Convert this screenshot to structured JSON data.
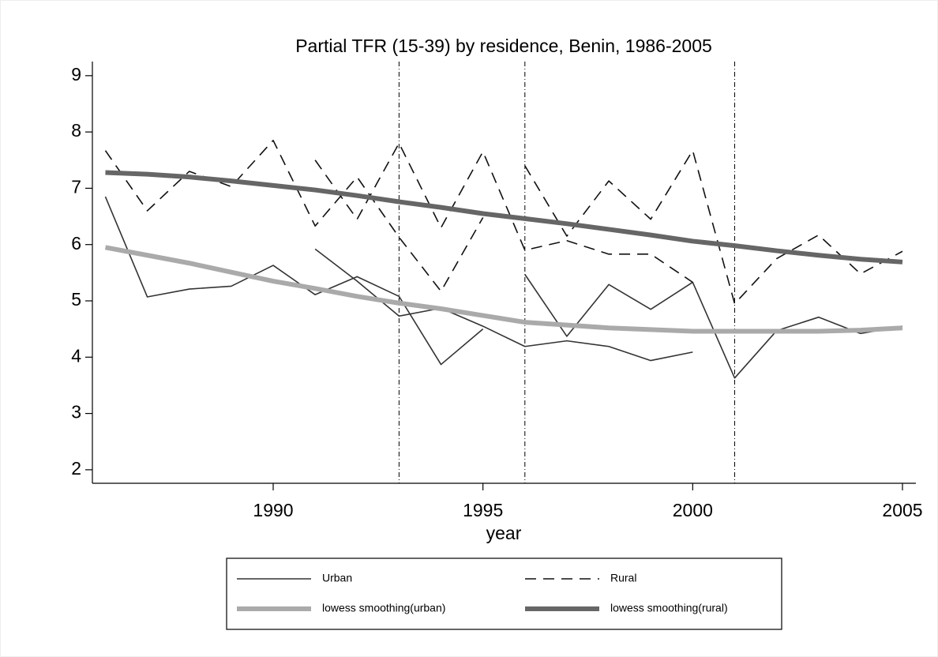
{
  "chart_data": {
    "type": "line",
    "title": "Partial TFR (15-39) by residence, Benin, 1986-2005",
    "x_label": "year",
    "x": [
      1986,
      1987,
      1988,
      1989,
      1990,
      1991,
      1992,
      1993,
      1994,
      1995,
      1996,
      1997,
      1998,
      1999,
      2000,
      2001,
      2002,
      2003,
      2004,
      2005
    ],
    "xlim": [
      1985.69,
      2005.32
    ],
    "xticks": [
      1990,
      1995,
      2000,
      2005
    ],
    "ylim": [
      1.76,
      9.25
    ],
    "yticks": [
      2,
      3,
      4,
      5,
      6,
      7,
      8,
      9
    ],
    "vlines": [
      1993,
      1996,
      2001
    ],
    "series": [
      {
        "name": "Urban",
        "color": "#333333",
        "width": 1.6,
        "dashed": false,
        "values": [
          [
            6.85,
            5.07,
            5.21,
            5.26,
            5.63,
            5.11,
            5.43,
            5.08,
            3.87,
            4.5,
            null,
            null,
            null,
            null,
            null,
            null,
            null,
            null,
            null,
            null
          ],
          [
            null,
            null,
            null,
            null,
            null,
            5.92,
            5.35,
            4.73,
            4.87,
            4.55,
            4.19,
            4.29,
            4.19,
            3.94,
            4.09,
            null,
            null,
            null,
            null,
            null
          ],
          [
            null,
            null,
            null,
            null,
            null,
            null,
            null,
            null,
            null,
            null,
            5.47,
            4.37,
            5.29,
            4.85,
            5.33,
            3.63,
            4.47,
            4.71,
            4.42,
            4.55
          ]
        ]
      },
      {
        "name": "Rural",
        "color": "#111111",
        "width": 1.6,
        "dashed": true,
        "values": [
          [
            7.67,
            6.6,
            7.3,
            7.03,
            7.85,
            6.33,
            7.2,
            6.13,
            5.17,
            6.48,
            null,
            null,
            null,
            null,
            null,
            null,
            null,
            null,
            null,
            null
          ],
          [
            null,
            null,
            null,
            null,
            null,
            7.5,
            6.45,
            7.8,
            6.3,
            7.65,
            5.9,
            6.07,
            5.83,
            5.83,
            5.33,
            null,
            null,
            null,
            null,
            null
          ],
          [
            null,
            null,
            null,
            null,
            null,
            null,
            null,
            null,
            null,
            null,
            7.4,
            6.15,
            7.13,
            6.45,
            7.67,
            4.95,
            5.75,
            6.17,
            5.48,
            5.88
          ]
        ]
      },
      {
        "name": "lowess smoothing(urban)",
        "color": "#aaaaaa",
        "width": 6,
        "dashed": false,
        "values": [
          5.95,
          5.81,
          5.67,
          5.51,
          5.35,
          5.22,
          5.08,
          4.96,
          4.86,
          4.74,
          4.62,
          4.57,
          4.52,
          4.49,
          4.46,
          4.46,
          4.46,
          4.46,
          4.48,
          4.52
        ]
      },
      {
        "name": "lowess smoothing(rural)",
        "color": "#666666",
        "width": 6,
        "dashed": false,
        "values": [
          7.28,
          7.25,
          7.2,
          7.13,
          7.05,
          6.97,
          6.87,
          6.76,
          6.66,
          6.55,
          6.46,
          6.37,
          6.27,
          6.17,
          6.06,
          5.98,
          5.89,
          5.81,
          5.74,
          5.69
        ]
      }
    ]
  }
}
